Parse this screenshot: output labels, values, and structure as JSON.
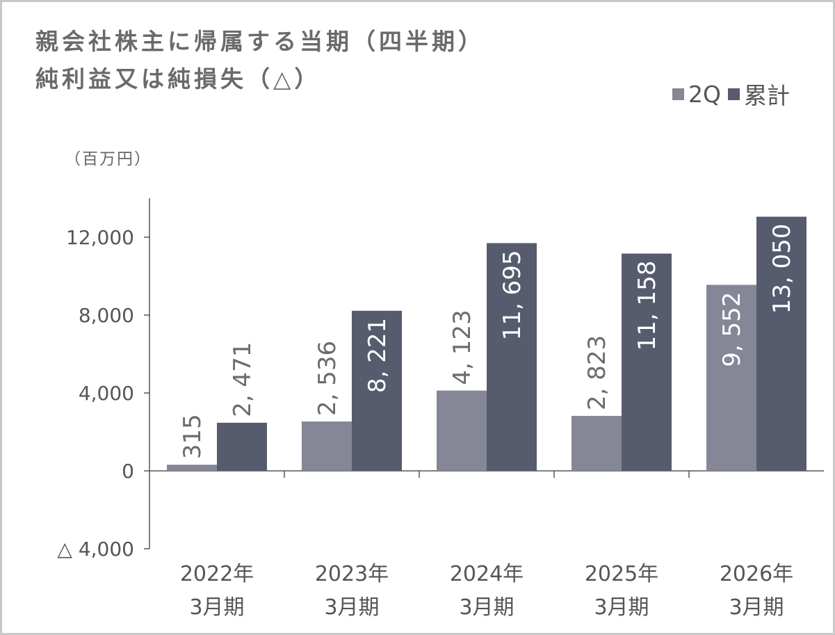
{
  "chart_data": {
    "type": "bar",
    "title_line1": "親会社株主に帰属する当期（四半期）",
    "title_line2": "純利益又は純損失（△）",
    "unit_label": "（百万円）",
    "categories": [
      "2022年\n3月期",
      "2023年\n3月期",
      "2024年\n3月期",
      "2025年\n3月期",
      "2026年\n3月期"
    ],
    "series": [
      {
        "name": "2Q",
        "color": "#858796",
        "label_color": "#6b6b6b",
        "values": [
          315,
          2536,
          4123,
          2823,
          9552
        ],
        "labels": [
          "315",
          "2, 536",
          "4, 123",
          "2, 823",
          "9, 552"
        ],
        "label_inside": [
          false,
          false,
          false,
          false,
          true
        ]
      },
      {
        "name": "累計",
        "color": "#575b6e",
        "label_color": "#6b6b6b",
        "values": [
          2471,
          8221,
          11695,
          11158,
          13050
        ],
        "labels": [
          "2, 471",
          "8, 221",
          "11, 695",
          "11, 158",
          "13, 050"
        ],
        "label_inside": [
          false,
          true,
          true,
          true,
          true
        ]
      }
    ],
    "ylim": [
      -4000,
      14000
    ],
    "yticks": [
      -4000,
      0,
      4000,
      8000,
      12000
    ],
    "ytick_labels": [
      "△ 4,000",
      "0",
      "4,000",
      "8,000",
      "12,000"
    ],
    "grid": false,
    "legend_position": "top-right"
  }
}
